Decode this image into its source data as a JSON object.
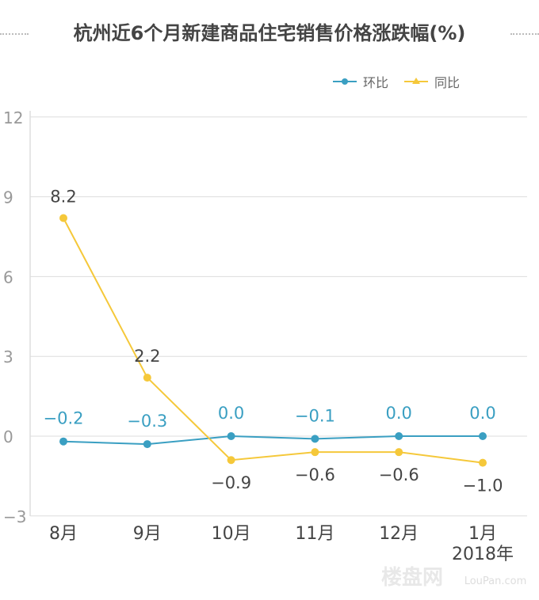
{
  "chart_data": {
    "type": "line",
    "title": "杭州近6个月新建商品住宅销售价格涨跌幅(%)",
    "categories": [
      "8月",
      "9月",
      "10月",
      "11月",
      "12月",
      "1月"
    ],
    "x_note": "2018年",
    "ylim": [
      -3,
      12
    ],
    "yticks": [
      "12",
      "9",
      "6",
      "3",
      "0",
      "−3"
    ],
    "ytick_values": [
      12,
      9,
      6,
      3,
      0,
      -3
    ],
    "grid": true,
    "legend_position": "top-right",
    "series": [
      {
        "name": "环比",
        "color": "#3a9fc2",
        "marker": "circle",
        "values": [
          -0.2,
          -0.3,
          0.0,
          -0.1,
          0.0,
          0.0
        ],
        "labels": [
          "−0.2",
          "−0.3",
          "0.0",
          "−0.1",
          "0.0",
          "0.0"
        ]
      },
      {
        "name": "同比",
        "color": "#f5c83a",
        "marker": "triangle",
        "values": [
          8.2,
          2.2,
          -0.9,
          -0.6,
          -0.6,
          -1.0
        ],
        "labels": [
          "8.2",
          "2.2",
          "−0.9",
          "−0.6",
          "−0.6",
          "−1.0"
        ]
      }
    ]
  },
  "watermark": {
    "text": "楼盘网",
    "subtext": "LouPan.com"
  }
}
